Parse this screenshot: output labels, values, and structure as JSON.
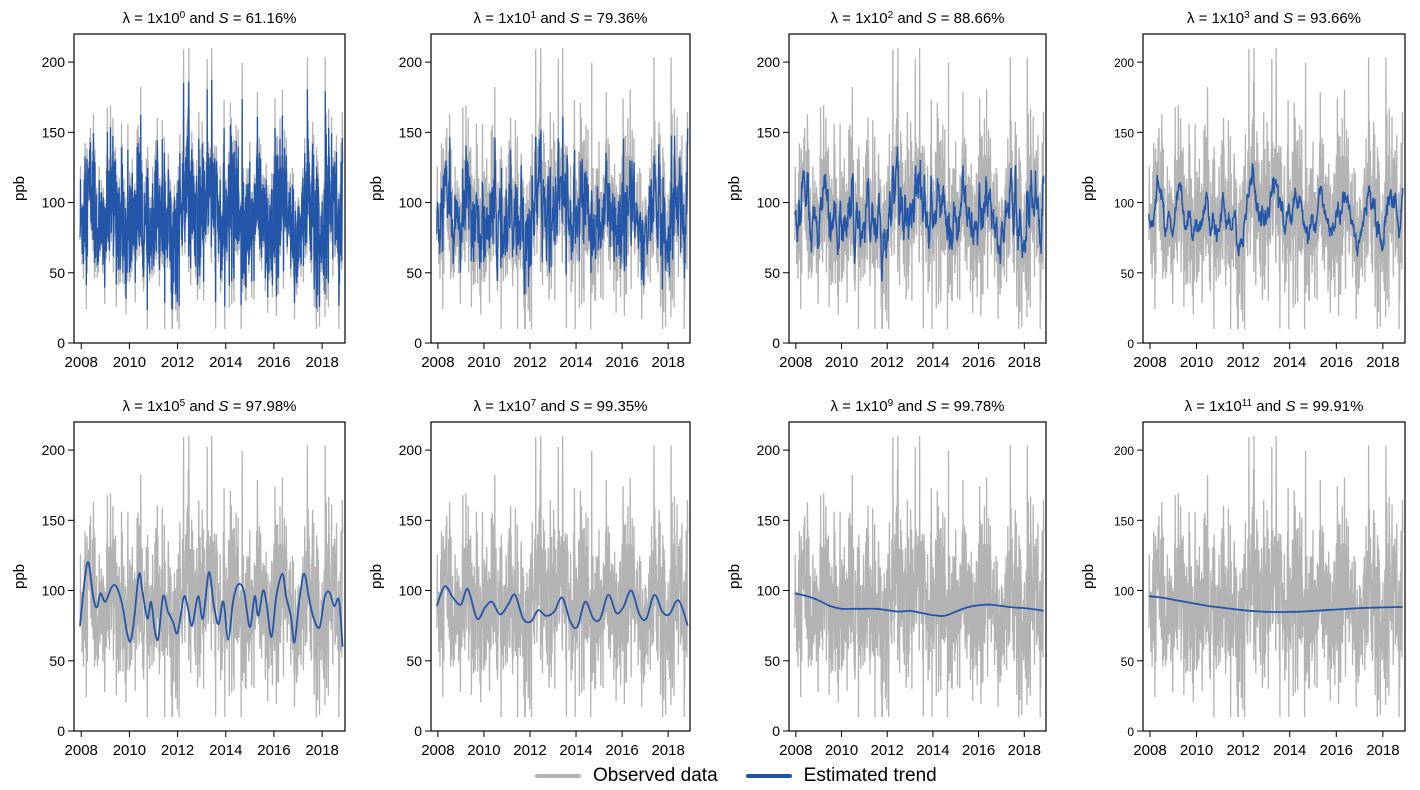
{
  "figure": {
    "title": ""
  },
  "legend": {
    "observed_label": "Observed data",
    "trend_label": "Estimated trend",
    "observed_color": "#b3b3b3",
    "trend_color": "#2356a8"
  },
  "chart_data": [
    {
      "type": "line",
      "lambda_label": "λ = 1x10",
      "exponent": "0",
      "and_text": " and ",
      "s_symbol": "S",
      "s_text": " = 61.16%",
      "ylabel": "ppb",
      "xticks": [
        "2008",
        "2010",
        "2012",
        "2014",
        "2016",
        "2018"
      ],
      "yticks": [
        "0",
        "50",
        "100",
        "150",
        "200"
      ],
      "xlim": [
        2007.7,
        2018.95
      ],
      "ylim": [
        0,
        220
      ],
      "trend_type": "raw",
      "trend_points": []
    },
    {
      "type": "line",
      "lambda_label": "λ = 1x10",
      "exponent": "1",
      "and_text": " and ",
      "s_symbol": "S",
      "s_text": " = 79.36%",
      "ylabel": "ppb",
      "xticks": [
        "2008",
        "2010",
        "2012",
        "2014",
        "2016",
        "2018"
      ],
      "yticks": [
        "0",
        "50",
        "100",
        "150",
        "200"
      ],
      "xlim": [
        2007.7,
        2018.95
      ],
      "ylim": [
        0,
        220
      ],
      "trend_type": "raw",
      "trend_points": []
    },
    {
      "type": "line",
      "lambda_label": "λ = 1x10",
      "exponent": "2",
      "and_text": " and ",
      "s_symbol": "S",
      "s_text": " = 88.66%",
      "ylabel": "ppb",
      "xticks": [
        "2008",
        "2010",
        "2012",
        "2014",
        "2016",
        "2018"
      ],
      "yticks": [
        "0",
        "50",
        "100",
        "150",
        "200"
      ],
      "xlim": [
        2007.7,
        2018.95
      ],
      "ylim": [
        0,
        220
      ],
      "trend_type": "raw",
      "trend_points": []
    },
    {
      "type": "line",
      "lambda_label": "λ = 1x10",
      "exponent": "3",
      "and_text": " and ",
      "s_symbol": "S",
      "s_text": " = 93.66%",
      "ylabel": "ppb",
      "xticks": [
        "2008",
        "2010",
        "2012",
        "2014",
        "2016",
        "2018"
      ],
      "yticks": [
        "0",
        "50",
        "100",
        "150",
        "200"
      ],
      "xlim": [
        2007.7,
        2018.95
      ],
      "ylim": [
        0,
        220
      ],
      "trend_type": "raw",
      "trend_points": []
    },
    {
      "type": "line",
      "lambda_label": "λ = 1x10",
      "exponent": "5",
      "and_text": " and ",
      "s_symbol": "S",
      "s_text": " = 97.98%",
      "ylabel": "ppb",
      "xticks": [
        "2008",
        "2010",
        "2012",
        "2014",
        "2016",
        "2018"
      ],
      "yticks": [
        "0",
        "50",
        "100",
        "150",
        "200"
      ],
      "xlim": [
        2007.7,
        2018.95
      ],
      "ylim": [
        0,
        220
      ],
      "trend_type": "smooth",
      "trend_points": [
        [
          2007.95,
          75
        ],
        [
          2008.15,
          108
        ],
        [
          2008.3,
          120
        ],
        [
          2008.5,
          95
        ],
        [
          2008.65,
          88
        ],
        [
          2008.8,
          98
        ],
        [
          2009.0,
          92
        ],
        [
          2009.25,
          102
        ],
        [
          2009.45,
          103
        ],
        [
          2009.7,
          90
        ],
        [
          2009.9,
          70
        ],
        [
          2010.05,
          64
        ],
        [
          2010.2,
          80
        ],
        [
          2010.4,
          112
        ],
        [
          2010.55,
          98
        ],
        [
          2010.75,
          80
        ],
        [
          2010.9,
          92
        ],
        [
          2011.05,
          72
        ],
        [
          2011.2,
          66
        ],
        [
          2011.4,
          96
        ],
        [
          2011.6,
          85
        ],
        [
          2011.8,
          78
        ],
        [
          2012.0,
          70
        ],
        [
          2012.25,
          95
        ],
        [
          2012.4,
          90
        ],
        [
          2012.6,
          75
        ],
        [
          2012.85,
          96
        ],
        [
          2013.05,
          80
        ],
        [
          2013.3,
          113
        ],
        [
          2013.5,
          90
        ],
        [
          2013.7,
          76
        ],
        [
          2013.9,
          92
        ],
        [
          2014.1,
          65
        ],
        [
          2014.3,
          92
        ],
        [
          2014.5,
          104
        ],
        [
          2014.75,
          100
        ],
        [
          2015.0,
          74
        ],
        [
          2015.2,
          96
        ],
        [
          2015.35,
          82
        ],
        [
          2015.55,
          100
        ],
        [
          2015.7,
          90
        ],
        [
          2015.9,
          67
        ],
        [
          2016.1,
          96
        ],
        [
          2016.35,
          112
        ],
        [
          2016.5,
          96
        ],
        [
          2016.7,
          82
        ],
        [
          2016.85,
          63
        ],
        [
          2017.05,
          92
        ],
        [
          2017.25,
          112
        ],
        [
          2017.45,
          95
        ],
        [
          2017.65,
          80
        ],
        [
          2017.9,
          74
        ],
        [
          2018.1,
          95
        ],
        [
          2018.3,
          99
        ],
        [
          2018.5,
          89
        ],
        [
          2018.7,
          93
        ],
        [
          2018.85,
          60
        ]
      ]
    },
    {
      "type": "line",
      "lambda_label": "λ = 1x10",
      "exponent": "7",
      "and_text": " and ",
      "s_symbol": "S",
      "s_text": " = 99.35%",
      "ylabel": "ppb",
      "xticks": [
        "2008",
        "2010",
        "2012",
        "2014",
        "2016",
        "2018"
      ],
      "yticks": [
        "0",
        "50",
        "100",
        "150",
        "200"
      ],
      "xlim": [
        2007.7,
        2018.95
      ],
      "ylim": [
        0,
        220
      ],
      "trend_type": "smooth",
      "trend_points": [
        [
          2007.95,
          89
        ],
        [
          2008.3,
          103
        ],
        [
          2008.65,
          95
        ],
        [
          2009.0,
          90
        ],
        [
          2009.3,
          101
        ],
        [
          2009.7,
          80
        ],
        [
          2010.05,
          88
        ],
        [
          2010.35,
          92
        ],
        [
          2010.7,
          83
        ],
        [
          2011.05,
          90
        ],
        [
          2011.35,
          97
        ],
        [
          2011.7,
          80
        ],
        [
          2012.05,
          78
        ],
        [
          2012.35,
          86
        ],
        [
          2012.7,
          82
        ],
        [
          2013.05,
          85
        ],
        [
          2013.4,
          95
        ],
        [
          2013.75,
          78
        ],
        [
          2014.05,
          74
        ],
        [
          2014.4,
          92
        ],
        [
          2014.75,
          80
        ],
        [
          2015.05,
          80
        ],
        [
          2015.4,
          97
        ],
        [
          2015.75,
          84
        ],
        [
          2016.05,
          88
        ],
        [
          2016.4,
          100
        ],
        [
          2016.75,
          83
        ],
        [
          2017.05,
          80
        ],
        [
          2017.4,
          97
        ],
        [
          2017.75,
          85
        ],
        [
          2018.05,
          83
        ],
        [
          2018.45,
          93
        ],
        [
          2018.85,
          75
        ]
      ]
    },
    {
      "type": "line",
      "lambda_label": "λ = 1x10",
      "exponent": "9",
      "and_text": " and ",
      "s_symbol": "S",
      "s_text": " = 99.78%",
      "ylabel": "ppb",
      "xticks": [
        "2008",
        "2010",
        "2012",
        "2014",
        "2016",
        "2018"
      ],
      "yticks": [
        "0",
        "50",
        "100",
        "150",
        "200"
      ],
      "xlim": [
        2007.7,
        2018.95
      ],
      "ylim": [
        0,
        220
      ],
      "trend_type": "smooth",
      "trend_points": [
        [
          2007.95,
          98
        ],
        [
          2008.5,
          96
        ],
        [
          2009.0,
          93
        ],
        [
          2009.5,
          89
        ],
        [
          2010.0,
          87
        ],
        [
          2010.5,
          87
        ],
        [
          2011.0,
          87
        ],
        [
          2011.5,
          87
        ],
        [
          2012.0,
          86
        ],
        [
          2012.5,
          85
        ],
        [
          2013.0,
          85.5
        ],
        [
          2013.5,
          84
        ],
        [
          2014.0,
          82.5
        ],
        [
          2014.5,
          82
        ],
        [
          2015.0,
          85
        ],
        [
          2015.5,
          88
        ],
        [
          2016.0,
          89.5
        ],
        [
          2016.5,
          90
        ],
        [
          2017.0,
          89
        ],
        [
          2017.5,
          88
        ],
        [
          2018.0,
          87.5
        ],
        [
          2018.5,
          86.5
        ],
        [
          2018.85,
          85.5
        ]
      ]
    },
    {
      "type": "line",
      "lambda_label": "λ = 1x10",
      "exponent": "11",
      "and_text": " and ",
      "s_symbol": "S",
      "s_text": " = 99.91%",
      "ylabel": "ppb",
      "xticks": [
        "2008",
        "2010",
        "2012",
        "2014",
        "2016",
        "2018"
      ],
      "yticks": [
        "0",
        "50",
        "100",
        "150",
        "200"
      ],
      "xlim": [
        2007.7,
        2018.95
      ],
      "ylim": [
        0,
        220
      ],
      "trend_type": "smooth",
      "trend_points": [
        [
          2007.95,
          96
        ],
        [
          2008.5,
          95
        ],
        [
          2009.0,
          93.5
        ],
        [
          2009.5,
          92
        ],
        [
          2010.0,
          90.5
        ],
        [
          2010.5,
          89
        ],
        [
          2011.0,
          88
        ],
        [
          2011.5,
          87
        ],
        [
          2012.0,
          86
        ],
        [
          2012.5,
          85.3
        ],
        [
          2013.0,
          84.9
        ],
        [
          2013.5,
          84.7
        ],
        [
          2014.0,
          84.8
        ],
        [
          2014.5,
          85
        ],
        [
          2015.0,
          85.5
        ],
        [
          2015.5,
          86
        ],
        [
          2016.0,
          86.5
        ],
        [
          2016.5,
          87
        ],
        [
          2017.0,
          87.5
        ],
        [
          2017.5,
          87.8
        ],
        [
          2018.0,
          88
        ],
        [
          2018.5,
          88.2
        ],
        [
          2018.85,
          88.3
        ]
      ]
    }
  ]
}
